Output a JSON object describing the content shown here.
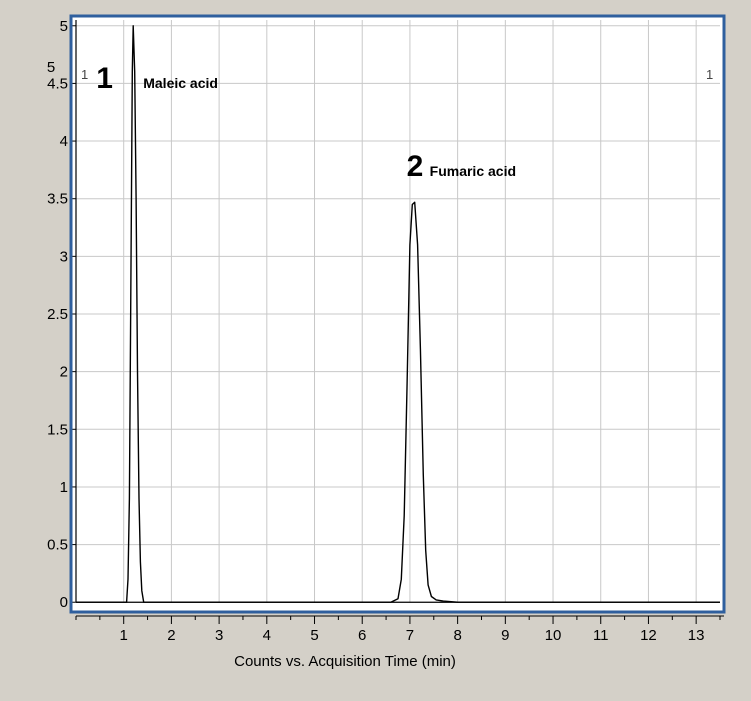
{
  "chart_data": {
    "type": "line",
    "title": "",
    "xlabel": "Counts vs. Acquisition Time (min)",
    "ylabel": "",
    "y_scale_label": "5",
    "xlim": [
      0,
      13.5
    ],
    "ylim": [
      -0.05,
      5.05
    ],
    "xticks": [
      1,
      2,
      3,
      4,
      5,
      6,
      7,
      8,
      9,
      10,
      11,
      12,
      13
    ],
    "yticks": [
      0,
      0.5,
      1,
      1.5,
      2,
      2.5,
      3,
      3.5,
      4,
      4.5,
      5
    ],
    "ytick_labels": [
      "0",
      "0.5",
      "1",
      "1.5",
      "2",
      "2.5",
      "3",
      "3.5",
      "4",
      "4.5",
      "5"
    ],
    "grid": true,
    "corner_marks": {
      "left": "1",
      "right": "1"
    },
    "series": [
      {
        "x": [
          0,
          1.0,
          1.06,
          1.09,
          1.12,
          1.15,
          1.18,
          1.2,
          1.23,
          1.26,
          1.29,
          1.32,
          1.35,
          1.38,
          1.42,
          2.0,
          4.0,
          6.6,
          6.75,
          6.82,
          6.88,
          6.94,
          7.0,
          7.05,
          7.1,
          7.16,
          7.22,
          7.28,
          7.33,
          7.38,
          7.45,
          7.55,
          7.7,
          8.0,
          10.0,
          13.5
        ],
        "y": [
          0,
          0,
          0,
          0.2,
          0.9,
          2.8,
          4.6,
          5.0,
          4.6,
          3.5,
          2.0,
          0.9,
          0.35,
          0.1,
          0,
          0,
          0,
          0,
          0.03,
          0.2,
          0.75,
          1.9,
          3.1,
          3.45,
          3.47,
          3.1,
          2.2,
          1.1,
          0.45,
          0.15,
          0.05,
          0.02,
          0.01,
          0,
          0,
          0
        ]
      }
    ],
    "peaks": [
      {
        "number": "1",
        "name": "Maleic acid",
        "x": 1.2,
        "y": 5.0
      },
      {
        "number": "2",
        "name": "Fumaric acid",
        "x": 7.12,
        "y": 3.47
      }
    ]
  }
}
